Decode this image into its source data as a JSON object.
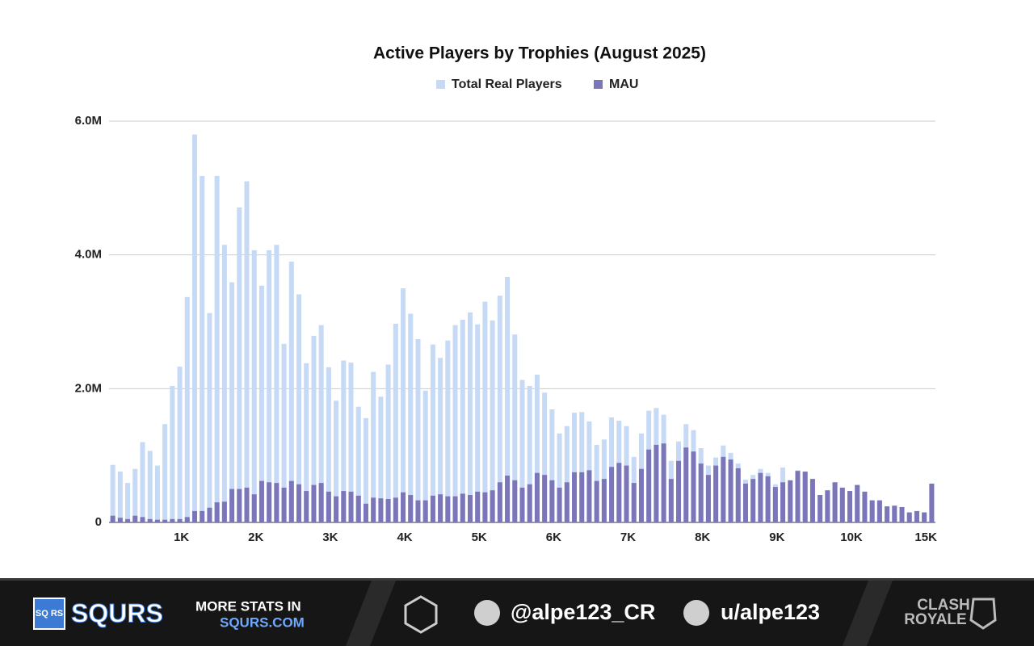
{
  "chart_data": {
    "type": "bar",
    "title": "Active Players by Trophies (August 2025)",
    "categories": [
      null,
      null,
      null,
      null,
      null,
      null,
      null,
      null,
      null,
      "1K",
      null,
      null,
      null,
      null,
      null,
      null,
      null,
      null,
      null,
      "2K",
      null,
      null,
      null,
      null,
      null,
      null,
      null,
      null,
      null,
      "3K",
      null,
      null,
      null,
      null,
      null,
      null,
      null,
      null,
      null,
      "4K",
      null,
      null,
      null,
      null,
      null,
      null,
      null,
      null,
      null,
      "5K",
      null,
      null,
      null,
      null,
      null,
      null,
      null,
      null,
      null,
      "6K",
      null,
      null,
      null,
      null,
      null,
      null,
      null,
      null,
      null,
      "7K",
      null,
      null,
      null,
      null,
      null,
      null,
      null,
      null,
      null,
      "8K",
      null,
      null,
      null,
      null,
      null,
      null,
      null,
      null,
      null,
      "9K",
      null,
      null,
      null,
      null,
      null,
      null,
      null,
      null,
      null,
      "10K",
      null,
      null,
      null,
      null,
      null,
      null,
      null,
      null,
      null,
      "15K",
      null
    ],
    "series": [
      {
        "name": "Total Real Players",
        "color": "#c6d9f5",
        "values": [
          860000,
          760000,
          590000,
          800000,
          1200000,
          1070000,
          850000,
          1470000,
          2040000,
          2330000,
          3370000,
          5800000,
          5180000,
          3130000,
          5180000,
          4150000,
          3590000,
          4710000,
          5100000,
          4070000,
          3540000,
          4070000,
          4150000,
          2670000,
          3900000,
          3410000,
          2380000,
          2790000,
          2950000,
          2320000,
          1820000,
          2420000,
          2390000,
          1730000,
          1560000,
          2250000,
          1880000,
          2360000,
          2970000,
          3500000,
          3120000,
          2740000,
          1970000,
          2660000,
          2460000,
          2720000,
          2950000,
          3030000,
          3140000,
          2960000,
          3300000,
          3020000,
          3390000,
          3670000,
          2810000,
          2130000,
          2040000,
          2210000,
          1940000,
          1690000,
          1330000,
          1440000,
          1640000,
          1650000,
          1510000,
          1160000,
          1240000,
          1570000,
          1520000,
          1440000,
          980000,
          1330000,
          1670000,
          1710000,
          1610000,
          920000,
          1210000,
          1470000,
          1380000,
          1110000,
          850000,
          970000,
          1150000,
          1040000,
          880000,
          640000,
          710000,
          800000,
          740000,
          570000,
          820000,
          570000,
          780000,
          760000,
          650000,
          410000,
          480000,
          600000,
          520000,
          470000,
          560000,
          460000,
          330000,
          330000,
          240000,
          250000,
          230000,
          150000,
          170000,
          150000,
          580000
        ]
      },
      {
        "name": "MAU",
        "color": "#7b75b9",
        "values": [
          100000,
          70000,
          50000,
          100000,
          80000,
          50000,
          40000,
          40000,
          50000,
          50000,
          80000,
          170000,
          170000,
          220000,
          300000,
          310000,
          500000,
          500000,
          520000,
          420000,
          620000,
          600000,
          590000,
          520000,
          620000,
          570000,
          470000,
          560000,
          590000,
          460000,
          390000,
          470000,
          460000,
          400000,
          280000,
          370000,
          360000,
          350000,
          370000,
          450000,
          410000,
          330000,
          330000,
          400000,
          420000,
          390000,
          390000,
          430000,
          410000,
          460000,
          450000,
          480000,
          600000,
          700000,
          630000,
          520000,
          570000,
          740000,
          710000,
          630000,
          520000,
          600000,
          750000,
          750000,
          780000,
          620000,
          650000,
          830000,
          890000,
          850000,
          590000,
          800000,
          1090000,
          1160000,
          1180000,
          650000,
          920000,
          1120000,
          1060000,
          880000,
          710000,
          850000,
          980000,
          940000,
          810000,
          580000,
          650000,
          740000,
          690000,
          530000,
          600000,
          630000,
          770000,
          760000,
          650000,
          410000,
          480000,
          600000,
          520000,
          470000,
          560000,
          460000,
          330000,
          330000,
          240000,
          250000,
          230000,
          150000,
          170000,
          150000,
          580000
        ]
      }
    ],
    "ylim": [
      0,
      6000000
    ],
    "yticks": [
      0,
      {
        "value": 2000000,
        "label": "2.0M"
      },
      {
        "value": 4000000,
        "label": "4.0M"
      },
      {
        "value": 6000000,
        "label": "6.0M"
      }
    ],
    "grid": true,
    "legend": "top"
  },
  "footer": {
    "brand": "SQURS",
    "brand_icon": "SQ RS",
    "promo_line1": "MORE STATS IN",
    "promo_line2": "SQURS.COM",
    "twitter": "@alpe123_CR",
    "reddit": "u/alpe123",
    "game_line1": "CLASH",
    "game_line2": "ROYALE"
  }
}
